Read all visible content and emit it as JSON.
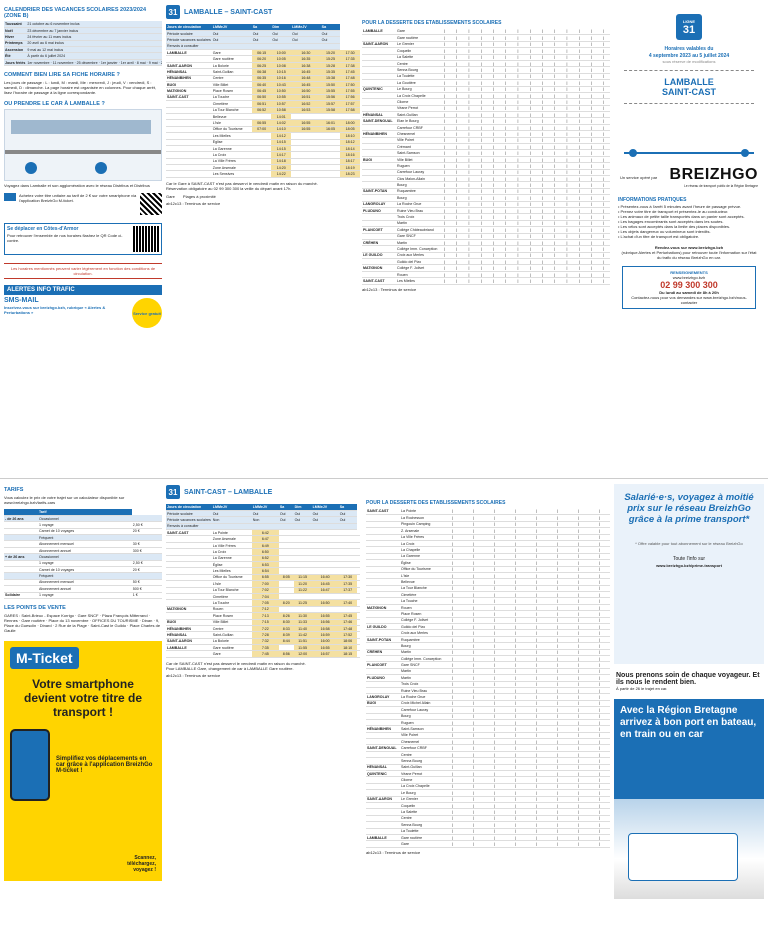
{
  "page1": {
    "calendar_title": "CALENDRIER DES VACANCES SCOLAIRES 2023/2024 (ZONE B)",
    "calendar_rows": [
      [
        "Toussaint",
        "21 octobre au 6 novembre inclus"
      ],
      [
        "Noël",
        "23 décembre au 7 janvier inclus"
      ],
      [
        "Hiver",
        "24 février au 11 mars inclus"
      ],
      [
        "Printemps",
        "20 avril au 6 mai inclus"
      ],
      [
        "Ascension",
        "9 mai au 12 mai inclus"
      ],
      [
        "Été",
        "À partir du 6 juillet 2024"
      ],
      [
        "Jours fériés",
        "1er novembre · 11 novembre · 25 décembre · 1er janvier · 1er avril · 8 mai · 9 mai · 20 mai"
      ]
    ],
    "how_to_read_title": "COMMENT BIEN LIRE SA FICHE HORAIRE ?",
    "how_to_read_text": "Les jours de passage : L : lundi, M : mardi, Me : mercredi, J : jeudi, V : vendredi, S : samedi, D : dimanche. La page horaire est organisée en colonnes. Pour chaque arrêt, lisez l'horaire de passage à la ligne correspondante.",
    "station_title": "OU PRENDRE LE CAR À LAMBALLE ?",
    "station_caption": "Voyagez dans Lamballe et son agglomération avec le réseau Distribus et Distribus",
    "ticket_text": "Achetez votre titre unitaire au tarif de 2 € sur votre smartphone via l'application BreizhGo M-ticket.",
    "deplacer_title": "Se déplacer en Côtes-d'Armor",
    "deplacer_text": "Pour retrouver l'ensemble de nos horaires flashez le QR Code ci-contre.",
    "horaires_note": "Les horaires mentionnés peuvent varier légèrement en fonction des conditions de circulation.",
    "alertes_title": "ALERTES INFO TRAFIC",
    "sms_title": "SMS-MAIL",
    "sms_text": "Inscrivez-vous sur breizhgo.bzh, rubrique « Alertes & Perturbations »",
    "service_badge": "Service gratuit"
  },
  "tt1": {
    "ligne": "LIGNE",
    "ligne_num": "31",
    "title": "LAMBALLE – SAINT-CAST",
    "section_title": "POUR LA DESSERTE DES ÉTABLISSEMENTS SCOLAIRES",
    "header_rows": [
      [
        "Jours de circulation",
        "LMMeJV",
        "Sa",
        "Dim",
        "LMMeJV",
        "Sa"
      ],
      [
        "Période scolaire",
        "Oui",
        "Oui",
        "Oui",
        "Oui",
        "Oui"
      ],
      [
        "Période vacances scolaires",
        "Oui",
        "Oui",
        "Oui",
        "Oui",
        "Oui"
      ],
      [
        "Renvois à consulter",
        "",
        "",
        "",
        "",
        ""
      ]
    ],
    "rows": [
      [
        "LAMBALLE",
        "Gare",
        "06:15",
        "10:00",
        "16:30",
        "15:20",
        "17:30"
      ],
      [
        "",
        "Gare routière",
        "06:20",
        "10:05",
        "16:35",
        "15:25",
        "17:35"
      ],
      [
        "SAINT-AARON",
        "La Bolorie",
        "06:25",
        "10:08",
        "16:38",
        "15:28",
        "17:38"
      ],
      [
        "HÉNANSAL",
        "Saint-Guillan",
        "06:38",
        "10:15",
        "16:45",
        "15:35",
        "17:45"
      ],
      [
        "HÉNANBIHEN",
        "Centre",
        "06:35",
        "10:16",
        "16:48",
        "15:38",
        "17:48"
      ],
      [
        "BUGI",
        "Ville Billet",
        "06:40",
        "10:43",
        "16:45",
        "15:50",
        "17:50"
      ],
      [
        "MATIGNON",
        "Place Rosen",
        "06:45",
        "10:50",
        "16:50",
        "15:55",
        "17:55"
      ],
      [
        "SAINT-CAST",
        "La Touche",
        "06:50",
        "10:55",
        "16:51",
        "15:56",
        "17:56"
      ],
      [
        "",
        "Cimetière",
        "06:51",
        "10:57",
        "16:52",
        "15:57",
        "17:57"
      ],
      [
        "",
        "La Tour Blanche",
        "06:52",
        "10:58",
        "16:53",
        "15:58",
        "17:58"
      ],
      [
        "",
        "Bellevue",
        "",
        "14:01",
        "",
        "",
        ""
      ],
      [
        "",
        "L'Isle",
        "06:55",
        "14:02",
        "16:55",
        "16:01",
        "18:00"
      ],
      [
        "",
        "Office du Tourisme",
        "07:00",
        "14:10",
        "16:55",
        "16:05",
        "18:05"
      ],
      [
        "",
        "Les Mielles",
        "",
        "14:12",
        "",
        "",
        "18:10"
      ],
      [
        "",
        "Église",
        "",
        "14:15",
        "",
        "",
        "18:12"
      ],
      [
        "",
        "La Garenne",
        "",
        "14:15",
        "",
        "",
        "18:14"
      ],
      [
        "",
        "La Croix",
        "",
        "14:17",
        "",
        "",
        "18:16"
      ],
      [
        "",
        "La Ville Frères",
        "",
        "14:18",
        "",
        "",
        "18:17"
      ],
      [
        "",
        "Zone Arsenale",
        "",
        "14:20",
        "",
        "",
        "18:19"
      ],
      [
        "",
        "Les Sensives",
        "",
        "14:22",
        "",
        "",
        "18:23"
      ]
    ],
    "notes": [
      "Car le Gare à SAINT-CAST n'est pas desservi le vendredi matin en raison du marché.",
      "Réservation obligatoire au 02 99 300 300 la veille du départ avant 17h."
    ],
    "legend_gare": "Gare",
    "legend_plages": "Plages à proximité",
    "footer_code": "ab12c13 : Terminus de service"
  },
  "tt2": {
    "section_title": "POUR LA DESSERTE DES ÉTABLISSEMENTS SCOLAIRES",
    "stops": [
      [
        "LAMBALLE",
        "Gare"
      ],
      [
        "",
        "Gare routière"
      ],
      [
        "SAINT-AARON",
        "Le Grenier"
      ],
      [
        "",
        "Coquelin"
      ],
      [
        "",
        "La Salette"
      ],
      [
        "",
        "Centre"
      ],
      [
        "",
        "Senna Bourg"
      ],
      [
        "",
        "La Toulette"
      ],
      [
        "",
        "La Goutière"
      ],
      [
        "QUINTENIC",
        "Le Bourg"
      ],
      [
        "",
        "La Croix Chapelle"
      ],
      [
        "",
        "Cliorne"
      ],
      [
        "",
        "Véane Perrot"
      ],
      [
        "HÉNANSAL",
        "Saint-Guillan"
      ],
      [
        "SAINT-DENOUAL",
        "Elan le Bourg"
      ],
      [
        "",
        "Carrefour CRBF"
      ],
      [
        "HÉNANBIHEN",
        "Chesnemel"
      ],
      [
        "",
        "Ville Poiret"
      ],
      [
        "",
        "Crémant"
      ],
      [
        "",
        "Saint-Samson"
      ],
      [
        "BUGI",
        "Ville Billet"
      ],
      [
        "",
        "Ruguen"
      ],
      [
        "",
        "Carrefour Lauray"
      ],
      [
        "",
        "Clos Malon-Allain"
      ],
      [
        "",
        "Bourg"
      ],
      [
        "SAINT-POTAN",
        "Ruquambre"
      ],
      [
        "",
        "Bourg"
      ],
      [
        "LANGROLAY",
        "La Roche Grue"
      ],
      [
        "PLUDUNO",
        "Ruine Vieu Brau"
      ],
      [
        "",
        "Trois Croix"
      ],
      [
        "",
        "Martin"
      ],
      [
        "PLANCOET",
        "Collège Châteaubriand"
      ],
      [
        "",
        "Gare SNCF"
      ],
      [
        "CRÉHEN",
        "Martin"
      ],
      [
        "",
        "Collège Imm. Conception"
      ],
      [
        "LE GUILDO",
        "Croix aux Merles"
      ],
      [
        "",
        "Guildo del Pizo"
      ],
      [
        "MATIGNON",
        "Collège F. Jolivet"
      ],
      [
        "",
        "Rouen"
      ],
      [
        "SAINT-CAST",
        "Les Mielles"
      ]
    ],
    "col_count": 14,
    "footer_code": "ab12c13 : Terminus de service"
  },
  "cover": {
    "ligne": "LIGNE",
    "ligne_num": "31",
    "valid_title": "Horaires valables du",
    "valid_dates": "4 septembre 2023 au 5 juillet 2024",
    "valid_sub": "sous réserve de modifications",
    "route_line1": "LAMBALLE",
    "route_line2": "SAINT-CAST",
    "network_service": "Un service opéré par",
    "brand": "BREIZHGO",
    "brand_sub": "Le réseau de transport public de la Région Bretagne",
    "info_title": "INFORMATIONS PRATIQUES",
    "info_items": [
      "Présentez-vous à l'arrêt 5 minutes avant l'heure de passage prévue.",
      "Prenez votre titre de transport et présentez-le au conducteur.",
      "Les animaux de petite taille transportés dans un panier sont acceptés.",
      "Les bagages encombrants sont acceptés dans les soutes.",
      "Les vélos sont acceptés dans la limite des places disponibles.",
      "Les objets dangereux ou volumineux sont interdits.",
      "L'achat d'un titre de transport est obligatoire."
    ],
    "rdv_title": "Rendez-vous sur www.breizhgo.bzh",
    "rdv_text": "(rubrique Alertes et Perturbations) pour retrouver toute l'information sur l'état du trafic du réseau BreizhGo en car.",
    "reservation_title": "RENSEIGNEMENTS",
    "reservation_site": "www.breizhgo.bzh",
    "phone": "02 99 300 300",
    "phone_hours": "Du lundi au samedi de 8h à 20h",
    "phone_sub": "Contactez-nous pour vos demandes sur www.breizhgo.bzh/nous-contacter"
  },
  "tarifs": {
    "title": "TARIFS",
    "intro": "Vous calculez le prix de votre trajet sur un calculateur disponible sur www.breizhgo.bzh/tarifs-cars",
    "headers": [
      "",
      "Tarif"
    ],
    "groups": [
      {
        "label": "- de 26 ans",
        "rows": [
          [
            "Occasionnel",
            ""
          ],
          [
            "1 voyage",
            "2,50 €"
          ],
          [
            "Carnet de 10 voyages",
            "20 €"
          ],
          [
            "Fréquent",
            ""
          ],
          [
            "Abonnement mensuel",
            "30 €"
          ],
          [
            "Abonnement annuel",
            "300 €"
          ]
        ]
      },
      {
        "label": "+ de 26 ans",
        "rows": [
          [
            "Occasionnel",
            ""
          ],
          [
            "1 voyage",
            "2,50 €"
          ],
          [
            "Carnet de 10 voyages",
            "20 €"
          ],
          [
            "Fréquent",
            ""
          ],
          [
            "Abonnement mensuel",
            "50 €"
          ],
          [
            "Abonnement annuel",
            "500 €"
          ]
        ]
      },
      {
        "label": "Solidaire",
        "rows": [
          [
            "1 voyage",
            "1 €"
          ]
        ]
      }
    ],
    "points_title": "LES POINTS DE VENTE",
    "points_text": "GARES : Saint-Brieuc - Espace Korrigo · Gare SNCF · Plaza François Mitterrand · Rennes · Gare routière · Place du 13 novembre · OFFICES DU TOURISME · Dinan · 9, Place du Guesclin · Dinard · 2 Rue de la Plage · Saint-Cast le Guildo · Place Charles de Gaulle",
    "mticket_brand": "M-Ticket",
    "mticket_title": "Votre smartphone devient votre titre de transport !",
    "mticket_text": "Simplifiez vos déplacements en car grâce à l'application BreizhGo M-ticket !",
    "mticket_small": "Scannez, téléchargez, voyagez !"
  },
  "tt3": {
    "ligne_num": "31",
    "title": "SAINT-CAST – LAMBALLE",
    "header_rows": [
      [
        "Jours de circulation",
        "LMMeJV",
        "LMMeJV",
        "Sa",
        "Dim",
        "LMMeJV",
        "Sa"
      ],
      [
        "Période scolaire",
        "Oui",
        "Oui",
        "Oui",
        "Oui",
        "Oui",
        "Oui"
      ],
      [
        "Période vacances scolaires",
        "Non",
        "Non",
        "Oui",
        "Oui",
        "Oui",
        "Oui"
      ],
      [
        "Renvois à consulter",
        "",
        "",
        "",
        "",
        "",
        ""
      ]
    ],
    "rows": [
      [
        "SAINT-CAST",
        "La Pointe",
        "6:42",
        "",
        "",
        "",
        "",
        ""
      ],
      [
        "",
        "Zone Arsenale",
        "6:47",
        "",
        "",
        "",
        "",
        ""
      ],
      [
        "",
        "La Ville Frères",
        "6:49",
        "",
        "",
        "",
        "",
        ""
      ],
      [
        "",
        "La Croix",
        "6:50",
        "",
        "",
        "",
        "",
        ""
      ],
      [
        "",
        "La Garenne",
        "6:52",
        "",
        "",
        "",
        "",
        ""
      ],
      [
        "",
        "Église",
        "6:53",
        "",
        "",
        "",
        "",
        ""
      ],
      [
        "",
        "Les Mielles",
        "6:54",
        "",
        "",
        "",
        "",
        ""
      ],
      [
        "",
        "Office du Tourisme",
        "6:55",
        "8:05",
        "11:15",
        "16:40",
        "17:30",
        ""
      ],
      [
        "",
        "L'Isle",
        "7:00",
        "",
        "11:20",
        "16:45",
        "17:35",
        ""
      ],
      [
        "",
        "La Tour Blanche",
        "7:02",
        "",
        "11:22",
        "16:47",
        "17:37",
        ""
      ],
      [
        "",
        "Cimetière",
        "7:04",
        "",
        "",
        "",
        "",
        ""
      ],
      [
        "",
        "La Touche",
        "7:05",
        "8:20",
        "11:25",
        "16:50",
        "17:40",
        ""
      ],
      [
        "MATIGNON",
        "Rouen",
        "7:12",
        "",
        "",
        "",
        "",
        ""
      ],
      [
        "",
        "Place Rosen",
        "7:13",
        "8:26",
        "11:30",
        "16:55",
        "17:45",
        ""
      ],
      [
        "BUGI",
        "Ville Billet",
        "7:15",
        "8:30",
        "11:33",
        "16:56",
        "17:46",
        ""
      ],
      [
        "HÉNANBIHEN",
        "Centre",
        "7:22",
        "8:33",
        "11:40",
        "16:58",
        "17:48",
        ""
      ],
      [
        "HÉNANSAL",
        "Saint-Guillan",
        "7:28",
        "8:39",
        "11:42",
        "16:59",
        "17:52",
        ""
      ],
      [
        "SAINT-AARON",
        "La Bolorie",
        "7:32",
        "8:44",
        "11:51",
        "16:00",
        "18:06",
        ""
      ],
      [
        "LAMBALLE",
        "Gare routière",
        "7:35",
        "",
        "11:55",
        "16:55",
        "18:10",
        ""
      ],
      [
        "",
        "Gare",
        "7:45",
        "8:56",
        "12:00",
        "16:57",
        "18:15",
        ""
      ]
    ],
    "notes": [
      "Car de SAINT-CAST n'est pas desservi le vendredi matin en raison du marché.",
      "Pour LAMBALLE Gare, changement de car à LAMBALLE Gare routière."
    ],
    "footer_code": "ab12c13 : Terminus de service"
  },
  "tt4": {
    "section_title": "POUR LA DESSERTE DES ÉTABLISSEMENTS SCOLAIRES",
    "stops": [
      [
        "SAINT-CAST",
        "La Pointe"
      ],
      [
        "",
        "La Rochesson"
      ],
      [
        "",
        "Pingouin Camping"
      ],
      [
        "",
        "Z. Arsenale"
      ],
      [
        "",
        "La Ville Frères"
      ],
      [
        "",
        "La Croix"
      ],
      [
        "",
        "La Chapelle"
      ],
      [
        "",
        "La Garenne"
      ],
      [
        "",
        "Église"
      ],
      [
        "",
        "Office du Tourisme"
      ],
      [
        "",
        "L'Isle"
      ],
      [
        "",
        "Bellevue"
      ],
      [
        "",
        "La Tour Blanche"
      ],
      [
        "",
        "Cimetière"
      ],
      [
        "",
        "La Touche"
      ],
      [
        "MATIGNON",
        "Rouen"
      ],
      [
        "",
        "Place Rosen"
      ],
      [
        "",
        "Collège F. Jolivet"
      ],
      [
        "LE GUILDO",
        "Guildo del Pizo"
      ],
      [
        "",
        "Croix aux Merles"
      ],
      [
        "SAINT-POTAN",
        "Ruquambre"
      ],
      [
        "",
        "Bourg"
      ],
      [
        "CRÉHEN",
        "Martin"
      ],
      [
        "",
        "Collège Imm. Conception"
      ],
      [
        "PLANCOET",
        "Gare SNCF"
      ],
      [
        "",
        "Martin"
      ],
      [
        "PLUDUNO",
        "Martin"
      ],
      [
        "",
        "Trois Croix"
      ],
      [
        "",
        "Ruine Vieu Brau"
      ],
      [
        "LANGROLAY",
        "La Roche Grue"
      ],
      [
        "BUGI",
        "Croix Michel Allain"
      ],
      [
        "",
        "Carrefour Lauray"
      ],
      [
        "",
        "Bourg"
      ],
      [
        "",
        "Ruguen"
      ],
      [
        "HÉNANBIHEN",
        "Saint-Samson"
      ],
      [
        "",
        "Ville Poiret"
      ],
      [
        "",
        "Chesnemel"
      ],
      [
        "SAINT-DENOUAL",
        "Carrefour CRBF"
      ],
      [
        "",
        "Centre"
      ],
      [
        "",
        "Senna Bourg"
      ],
      [
        "HÉNANSAL",
        "Saint-Guillan"
      ],
      [
        "QUINTENIC",
        "Véane Perrot"
      ],
      [
        "",
        "Cliorne"
      ],
      [
        "",
        "La Croix Chapelle"
      ],
      [
        "",
        "Le Bourg"
      ],
      [
        "SAINT-AARON",
        "Le Grenier"
      ],
      [
        "",
        "Coquelin"
      ],
      [
        "",
        "La Salette"
      ],
      [
        "",
        "Centre"
      ],
      [
        "",
        "Senna Bourg"
      ],
      [
        "",
        "La Toulette"
      ],
      [
        "LAMBALLE",
        "Gare routière"
      ],
      [
        "",
        "Gare"
      ]
    ],
    "col_count": 8,
    "footer_code": "ab12c13 : Terminus de service"
  },
  "promo": {
    "salaries_title": "Salarié·e·s, voyagez à moitié prix sur le réseau BreizhGo grâce à la prime transport*",
    "salaries_note": "* Offre valable pour tout abonnement sur le réseau BreizhGo",
    "salaries_link_label": "Toute l'info sur",
    "salaries_link": "www.breizhgo.bzh/prime-transport",
    "care_title": "Nous prenons soin de chaque voyageur. Et ils nous le rendent bien.",
    "care_sub": "À partir de 26 le trajet en car.",
    "region_title": "Avec la Région Bretagne arrivez à bon port en bateau, en train ou en car"
  }
}
